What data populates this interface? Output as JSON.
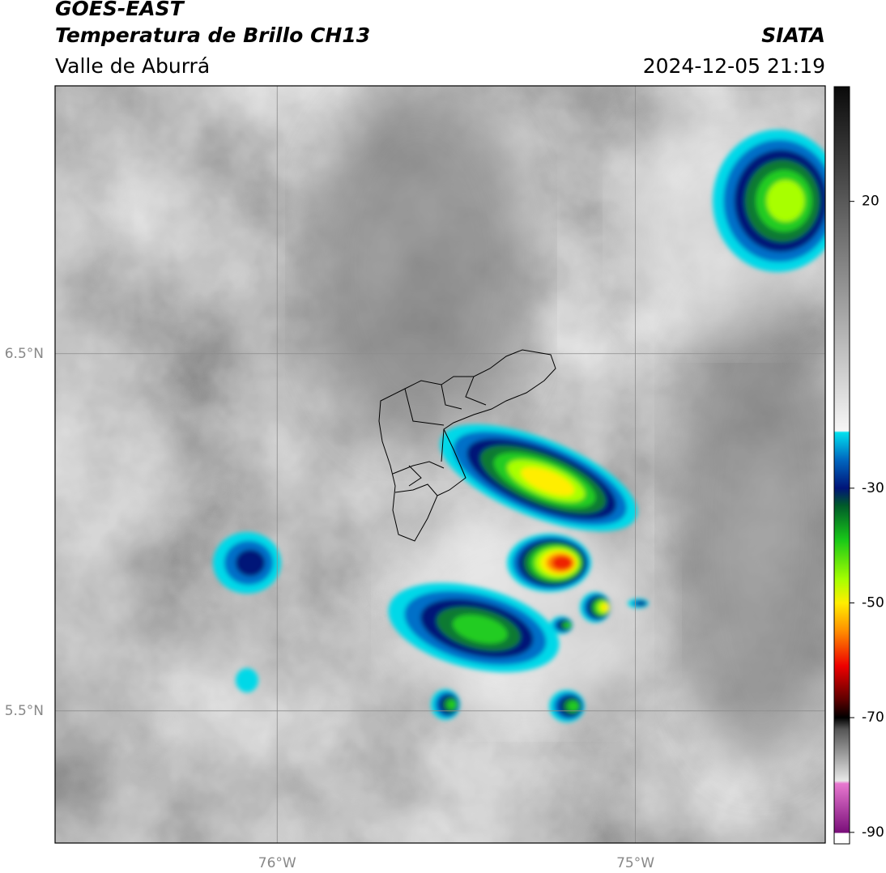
{
  "header": {
    "title": "GOES-EAST",
    "subtitle": "Temperatura de Brillo CH13",
    "region": "Valle de Aburrá",
    "source": "SIATA",
    "timestamp": "2024-12-05 21:19"
  },
  "map": {
    "xlim": [
      -76.62,
      -74.47
    ],
    "ylim": [
      5.13,
      7.25
    ],
    "xticks": [
      {
        "value": -76,
        "label": "76°W"
      },
      {
        "value": -75,
        "label": "75°W"
      }
    ],
    "yticks": [
      {
        "value": 6.5,
        "label": "6.5°N"
      },
      {
        "value": 5.5,
        "label": "5.5°N"
      }
    ],
    "grid": true
  },
  "colorbar": {
    "clim": [
      -92,
      40
    ],
    "ticks": [
      20,
      -30,
      -50,
      -70,
      -90
    ],
    "colormap": [
      {
        "value": -92,
        "color": "#ffffff"
      },
      {
        "value": -90.2,
        "color": "#ffffff"
      },
      {
        "value": -90,
        "color": "#7a0f7a"
      },
      {
        "value": -81.5,
        "color": "#e878d0"
      },
      {
        "value": -81,
        "color": "#e8e8e8"
      },
      {
        "value": -72,
        "color": "#555555"
      },
      {
        "value": -70,
        "color": "#000000"
      },
      {
        "value": -67,
        "color": "#5a0000"
      },
      {
        "value": -61,
        "color": "#ee0000"
      },
      {
        "value": -55,
        "color": "#ff8c00"
      },
      {
        "value": -50,
        "color": "#ffee00"
      },
      {
        "value": -46,
        "color": "#a8ff00"
      },
      {
        "value": -39,
        "color": "#18c818"
      },
      {
        "value": -33,
        "color": "#005a2a"
      },
      {
        "value": -30,
        "color": "#001478"
      },
      {
        "value": -25,
        "color": "#0068c0"
      },
      {
        "value": -20.3,
        "color": "#00e0ee"
      },
      {
        "value": -20,
        "color": "#f6f6f6"
      },
      {
        "value": 40,
        "color": "#0a0a0a"
      }
    ]
  }
}
